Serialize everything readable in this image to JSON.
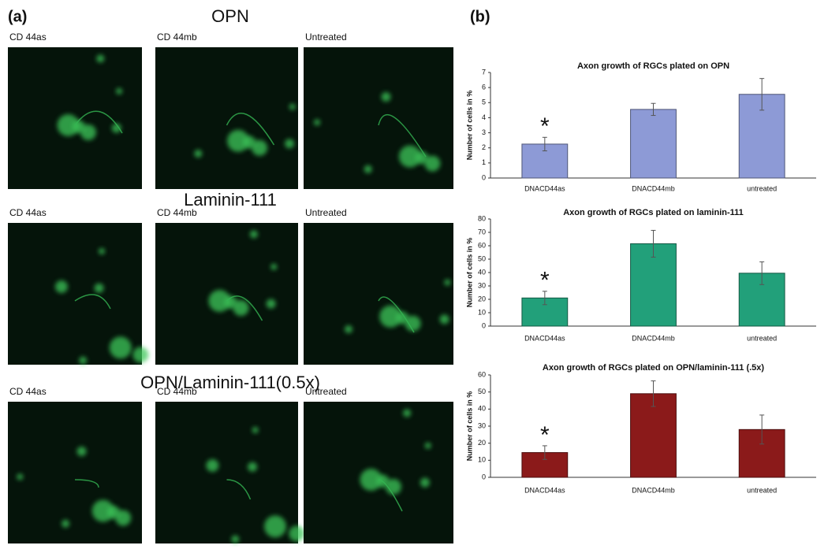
{
  "panel_a": {
    "label": "(a)",
    "rows": [
      {
        "title": "OPN",
        "captions": [
          "CD 44as",
          "CD 44mb",
          "Untreated"
        ]
      },
      {
        "title": "Laminin-111",
        "captions": [
          "CD 44as",
          "CD 44mb",
          "Untreated"
        ]
      },
      {
        "title": "OPN/Laminin-111(0.5x)",
        "captions": [
          "CD 44as",
          "CD 44mb",
          "Untreated"
        ]
      }
    ]
  },
  "panel_b": {
    "label": "(b)"
  },
  "chart_data": [
    {
      "type": "bar",
      "title": "Axon growth of RGCs plated on OPN",
      "y_label": "Number of cells in %",
      "categories": [
        "DNACD44as",
        "DNACD44mb",
        "untreated"
      ],
      "values": [
        2.25,
        4.55,
        5.55
      ],
      "errors": [
        0.45,
        0.4,
        1.05
      ],
      "color": "#8d9ad6",
      "ylim": [
        0,
        7
      ],
      "yticks": [
        0,
        1,
        2,
        3,
        4,
        5,
        6,
        7
      ],
      "annotation": {
        "text": "*",
        "category": "DNACD44as"
      }
    },
    {
      "type": "bar",
      "title": "Axon growth of RGCs plated on laminin-111",
      "y_label": "Number of cells in %",
      "categories": [
        "DNACD44as",
        "DNACD44mb",
        "untreated"
      ],
      "values": [
        21,
        61.5,
        39.5
      ],
      "errors": [
        5,
        10,
        8.5
      ],
      "color": "#22a07a",
      "ylim": [
        0,
        80
      ],
      "yticks": [
        0,
        10,
        20,
        30,
        40,
        50,
        60,
        70,
        80
      ],
      "annotation": {
        "text": "*",
        "category": "DNACD44as"
      }
    },
    {
      "type": "bar",
      "title": "Axon growth of RGCs plated on OPN/laminin-111 (.5x)",
      "y_label": "Number of cells in %",
      "categories": [
        "DNACD44as",
        "DNACD44mb",
        "untreated"
      ],
      "values": [
        14.5,
        49,
        28
      ],
      "errors": [
        4,
        7.5,
        8.5
      ],
      "color": "#8b1a1a",
      "ylim": [
        0,
        60
      ],
      "yticks": [
        0,
        10,
        20,
        30,
        40,
        50,
        60
      ],
      "annotation": {
        "text": "*",
        "category": "DNACD44as"
      }
    }
  ]
}
